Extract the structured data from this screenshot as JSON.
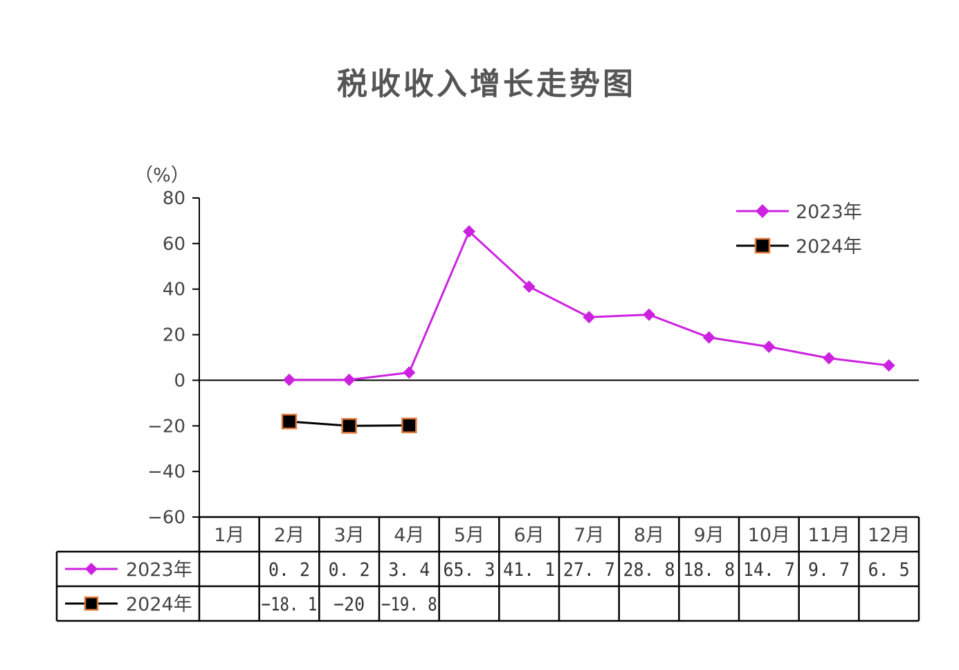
{
  "chart_data": {
    "type": "line",
    "title": "税收收入增长走势图",
    "ylabel": "（%）",
    "ylim": [
      -60,
      80
    ],
    "yticks": [
      80,
      60,
      40,
      20,
      0,
      -20,
      -40,
      -60
    ],
    "yticks_display": [
      "80",
      "60",
      "40",
      "20",
      "0",
      "−20",
      "−40",
      "−60"
    ],
    "categories": [
      "1月",
      "2月",
      "3月",
      "4月",
      "5月",
      "6月",
      "7月",
      "8月",
      "9月",
      "10月",
      "11月",
      "12月"
    ],
    "series": [
      {
        "name": "2023年",
        "values": [
          null,
          0.2,
          0.2,
          3.4,
          65.3,
          41.1,
          27.7,
          28.8,
          18.8,
          14.7,
          9.7,
          6.5
        ],
        "table_values": [
          "",
          "0. 2",
          "0. 2",
          "3. 4",
          "65. 3",
          "41. 1",
          "27. 7",
          "28. 8",
          "18. 8",
          "14. 7",
          "9. 7",
          "6. 5"
        ],
        "color": "#cc22e0",
        "marker": "diamond"
      },
      {
        "name": "2024年",
        "values": [
          null,
          -18.1,
          -20,
          -19.8,
          null,
          null,
          null,
          null,
          null,
          null,
          null,
          null
        ],
        "table_values": [
          "",
          "−18. 1",
          "−20",
          "−19. 8",
          "",
          "",
          "",
          "",
          "",
          "",
          "",
          ""
        ],
        "color": "#000000",
        "marker_edge": "#e0783a",
        "marker": "square"
      }
    ],
    "legend_position": "top-right",
    "grid": false
  }
}
